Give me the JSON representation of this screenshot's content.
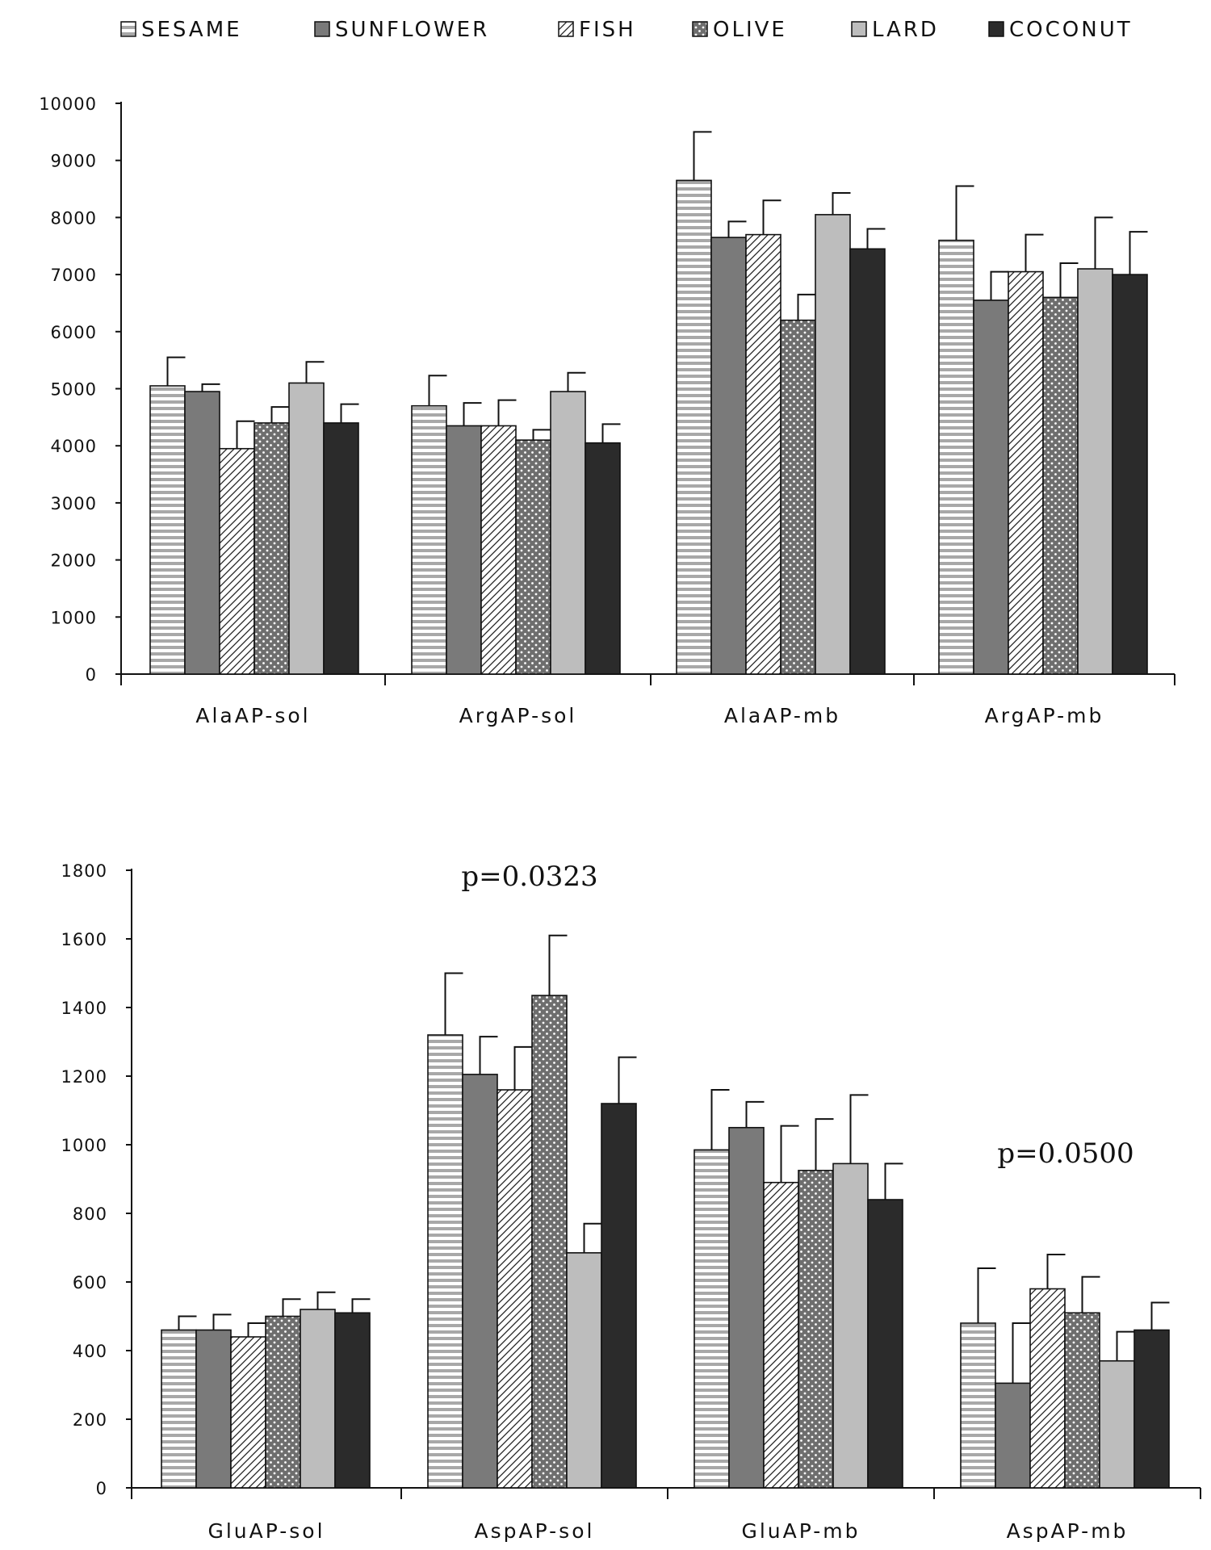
{
  "colors": {
    "SESAME": "#ffffff",
    "SUNFLOWER": "#7a7a7a",
    "FISH": "#ffffff",
    "OLIVE": "#6e6e6e",
    "LARD": "#bdbdbd",
    "COCONUT": "#2b2b2b"
  },
  "legend": [
    {
      "name": "SESAME",
      "pattern": "hstripe"
    },
    {
      "name": "SUNFLOWER",
      "pattern": "solid-mid"
    },
    {
      "name": "FISH",
      "pattern": "diag"
    },
    {
      "name": "OLIVE",
      "pattern": "dots"
    },
    {
      "name": "LARD",
      "pattern": "solid-light"
    },
    {
      "name": "COCONUT",
      "pattern": "solid-dark"
    }
  ],
  "chart_data": [
    {
      "type": "bar",
      "categories": [
        "AlaAP-sol",
        "ArgAP-sol",
        "AlaAP-mb",
        "ArgAP-mb"
      ],
      "ylim": [
        0,
        10000
      ],
      "yticks": [
        0,
        1000,
        2000,
        3000,
        4000,
        5000,
        6000,
        7000,
        8000,
        9000,
        10000
      ],
      "series": [
        {
          "name": "SESAME",
          "values": [
            5050,
            4700,
            8650,
            7600
          ],
          "errors": [
            500,
            530,
            850,
            950
          ]
        },
        {
          "name": "SUNFLOWER",
          "values": [
            4950,
            4350,
            7650,
            6550
          ],
          "errors": [
            130,
            400,
            280,
            500
          ]
        },
        {
          "name": "FISH",
          "values": [
            3950,
            4350,
            7700,
            7050
          ],
          "errors": [
            480,
            450,
            600,
            650
          ]
        },
        {
          "name": "OLIVE",
          "values": [
            4400,
            4100,
            6200,
            6600
          ],
          "errors": [
            280,
            180,
            450,
            600
          ]
        },
        {
          "name": "LARD",
          "values": [
            5100,
            4950,
            8050,
            7100
          ],
          "errors": [
            370,
            330,
            380,
            900
          ]
        },
        {
          "name": "COCONUT",
          "values": [
            4400,
            4050,
            7450,
            7000
          ],
          "errors": [
            330,
            330,
            350,
            750
          ]
        }
      ],
      "annotations": []
    },
    {
      "type": "bar",
      "categories": [
        "GluAP-sol",
        "AspAP-sol",
        "GluAP-mb",
        "AspAP-mb"
      ],
      "ylim": [
        0,
        1800
      ],
      "yticks": [
        0,
        200,
        400,
        600,
        800,
        1000,
        1200,
        1400,
        1600,
        1800
      ],
      "series": [
        {
          "name": "SESAME",
          "values": [
            460,
            1320,
            985,
            480
          ],
          "errors": [
            40,
            180,
            175,
            160
          ]
        },
        {
          "name": "SUNFLOWER",
          "values": [
            460,
            1205,
            1050,
            305
          ],
          "errors": [
            45,
            110,
            75,
            175
          ]
        },
        {
          "name": "FISH",
          "values": [
            440,
            1160,
            890,
            580
          ],
          "errors": [
            40,
            125,
            165,
            100
          ]
        },
        {
          "name": "OLIVE",
          "values": [
            500,
            1435,
            925,
            510
          ],
          "errors": [
            50,
            175,
            150,
            105
          ]
        },
        {
          "name": "LARD",
          "values": [
            520,
            685,
            945,
            370
          ],
          "errors": [
            50,
            85,
            200,
            85
          ]
        },
        {
          "name": "COCONUT",
          "values": [
            510,
            1120,
            840,
            460
          ],
          "errors": [
            40,
            135,
            105,
            80
          ]
        }
      ],
      "annotations": [
        {
          "text": "p=0.0323",
          "category": 1
        },
        {
          "text": "p=0.0500",
          "category": 3
        }
      ]
    }
  ]
}
